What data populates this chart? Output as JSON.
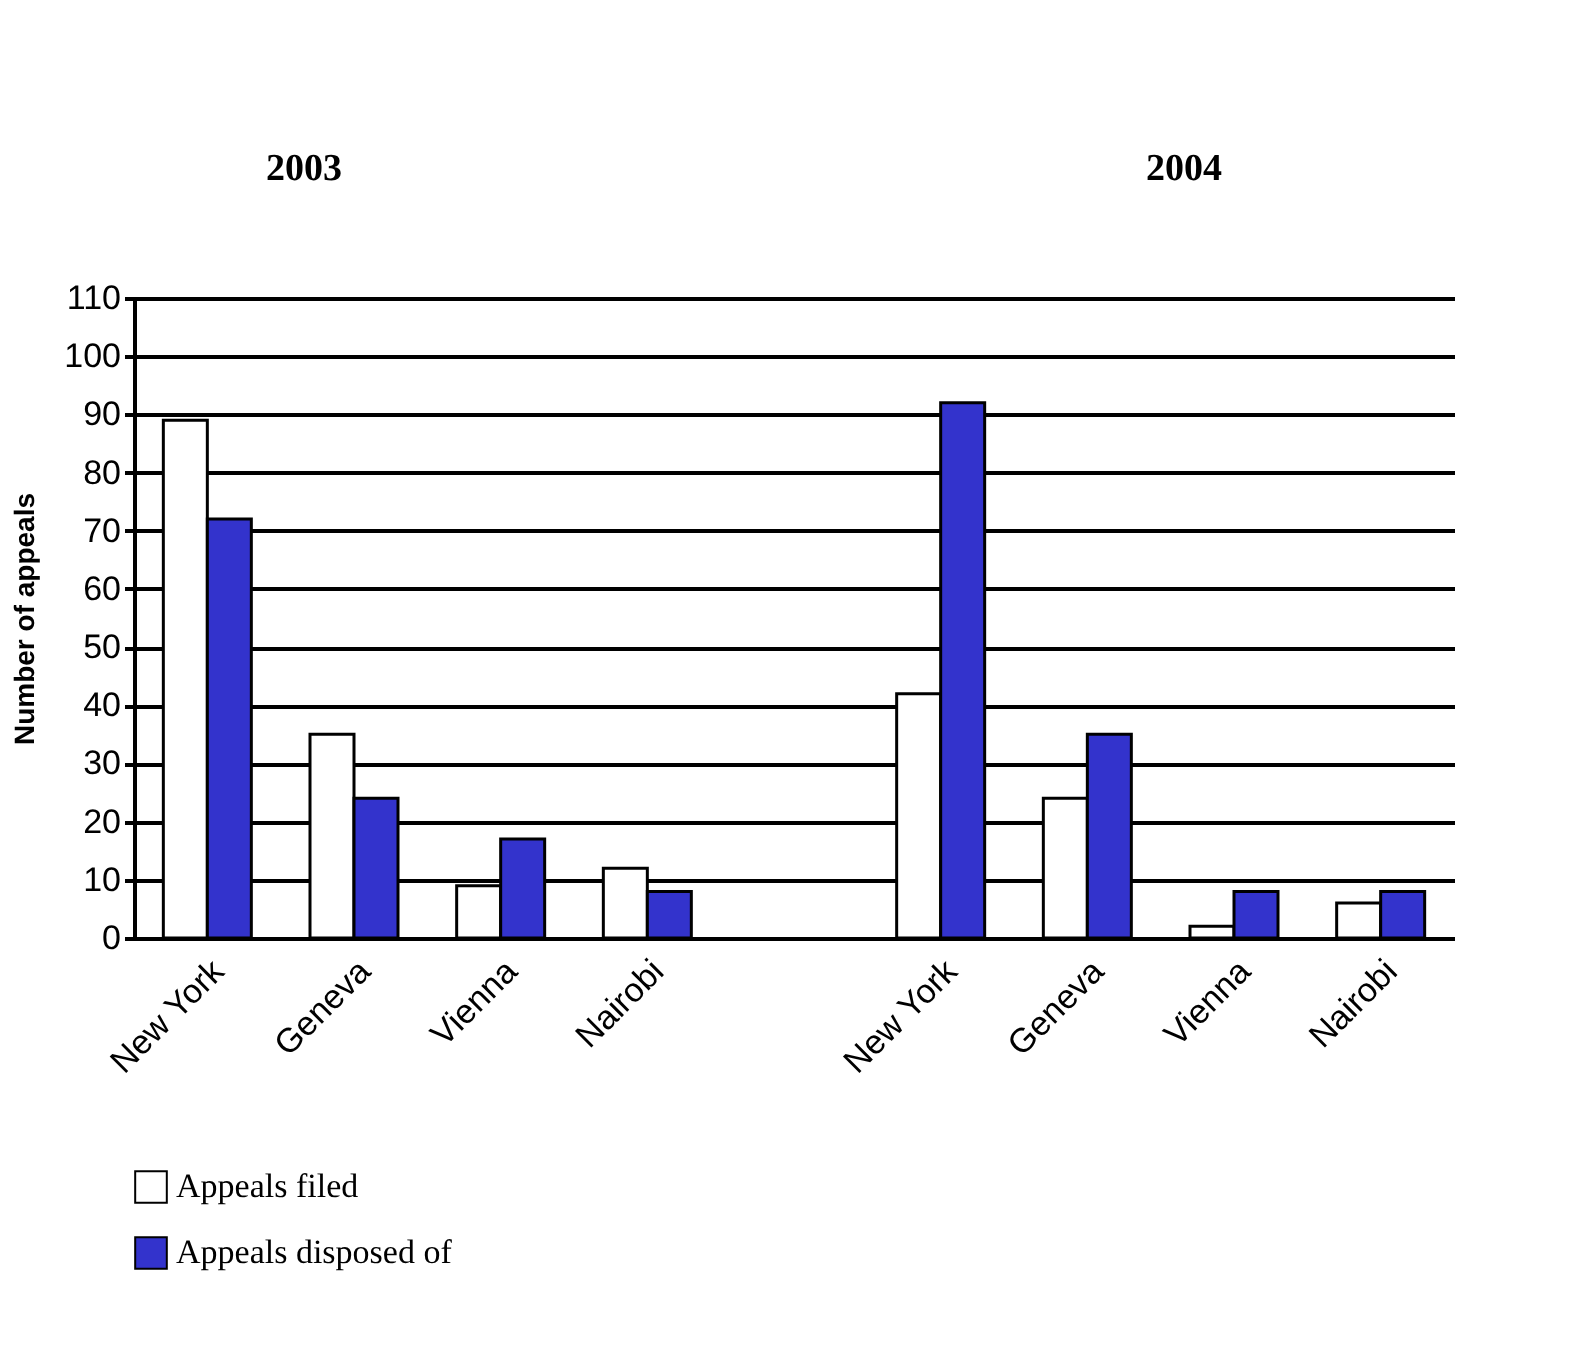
{
  "chart_data": {
    "type": "bar",
    "annotations": [
      "2003",
      "2004"
    ],
    "ylabel": "Number of appeals",
    "categories": [
      "New York",
      "Geneva",
      "Vienna",
      "Nairobi",
      null,
      "New York",
      "Geneva",
      "Vienna",
      "Nairobi"
    ],
    "series": [
      {
        "name": "Appeals filed",
        "color": "#ffffff",
        "values": [
          89,
          35,
          9,
          12,
          null,
          42,
          24,
          2,
          6
        ]
      },
      {
        "name": "Appeals disposed of",
        "color": "#3333cc",
        "values": [
          72,
          24,
          17,
          8,
          null,
          92,
          35,
          8,
          8
        ]
      }
    ],
    "ylim": [
      0,
      110
    ],
    "yticks": [
      0,
      10,
      20,
      30,
      40,
      50,
      60,
      70,
      80,
      90,
      100,
      110
    ],
    "grid": "y",
    "legend": "bottom"
  }
}
